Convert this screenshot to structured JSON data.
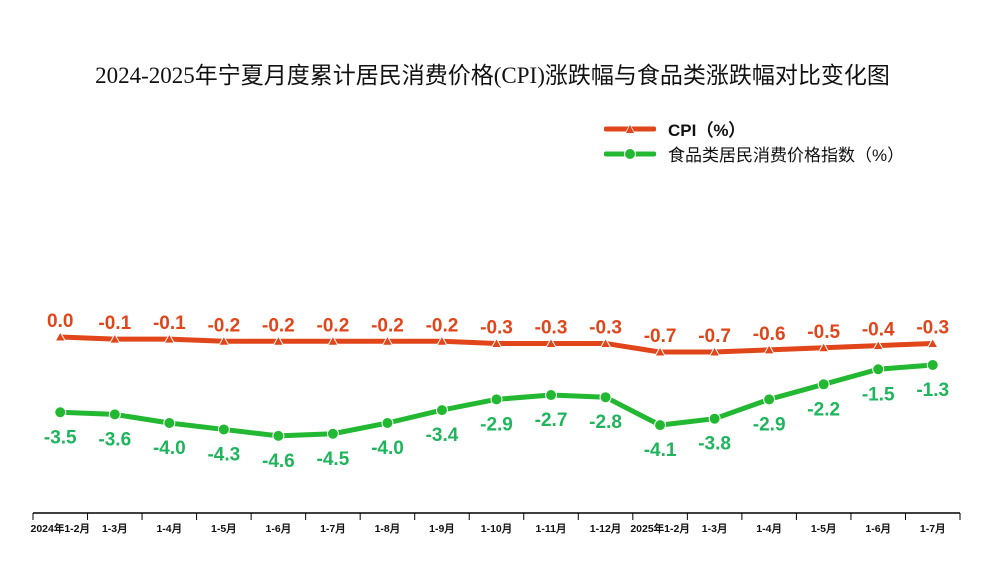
{
  "chart_data": {
    "type": "line",
    "title": "2024-2025年宁夏月度累计居民消费价格(CPI)涨跌幅与食品类涨跌幅对比变化图",
    "categories": [
      "2024年1-2月",
      "1-3月",
      "1-4月",
      "1-5月",
      "1-6月",
      "1-7月",
      "1-8月",
      "1-9月",
      "1-10月",
      "1-11月",
      "1-12月",
      "2025年1-2月",
      "1-3月",
      "1-4月",
      "1-5月",
      "1-6月",
      "1-7月"
    ],
    "series": [
      {
        "name": "CPI（%）",
        "color": "#e0461a",
        "marker": "triangle",
        "values": [
          0.0,
          -0.1,
          -0.1,
          -0.2,
          -0.2,
          -0.2,
          -0.2,
          -0.2,
          -0.3,
          -0.3,
          -0.3,
          -0.7,
          -0.7,
          -0.6,
          -0.5,
          -0.4,
          -0.3
        ],
        "labels": [
          "0.0",
          "-0.1",
          "-0.1",
          "-0.2",
          "-0.2",
          "-0.2",
          "-0.2",
          "-0.2",
          "-0.3",
          "-0.3",
          "-0.3",
          "-0.7",
          "-0.7",
          "-0.6",
          "-0.5",
          "-0.4",
          "-0.3"
        ]
      },
      {
        "name": "食品类居民消费价格指数（%）",
        "color": "#22b832",
        "label_color": "#1fb55c",
        "marker": "circle",
        "values": [
          -3.5,
          -3.6,
          -4.0,
          -4.3,
          -4.6,
          -4.5,
          -4.0,
          -3.4,
          -2.9,
          -2.7,
          -2.8,
          -4.1,
          -3.8,
          -2.9,
          -2.2,
          -1.5,
          -1.3
        ],
        "labels": [
          "-3.5",
          "-3.6",
          "-4.0",
          "-4.3",
          "-4.6",
          "-4.5",
          "-4.0",
          "-3.4",
          "-2.9",
          "-2.7",
          "-2.8",
          "-4.1",
          "-3.8",
          "-2.9",
          "-2.2",
          "-1.5",
          "-1.3"
        ]
      }
    ],
    "legend_position": "top-right",
    "grid": false
  }
}
